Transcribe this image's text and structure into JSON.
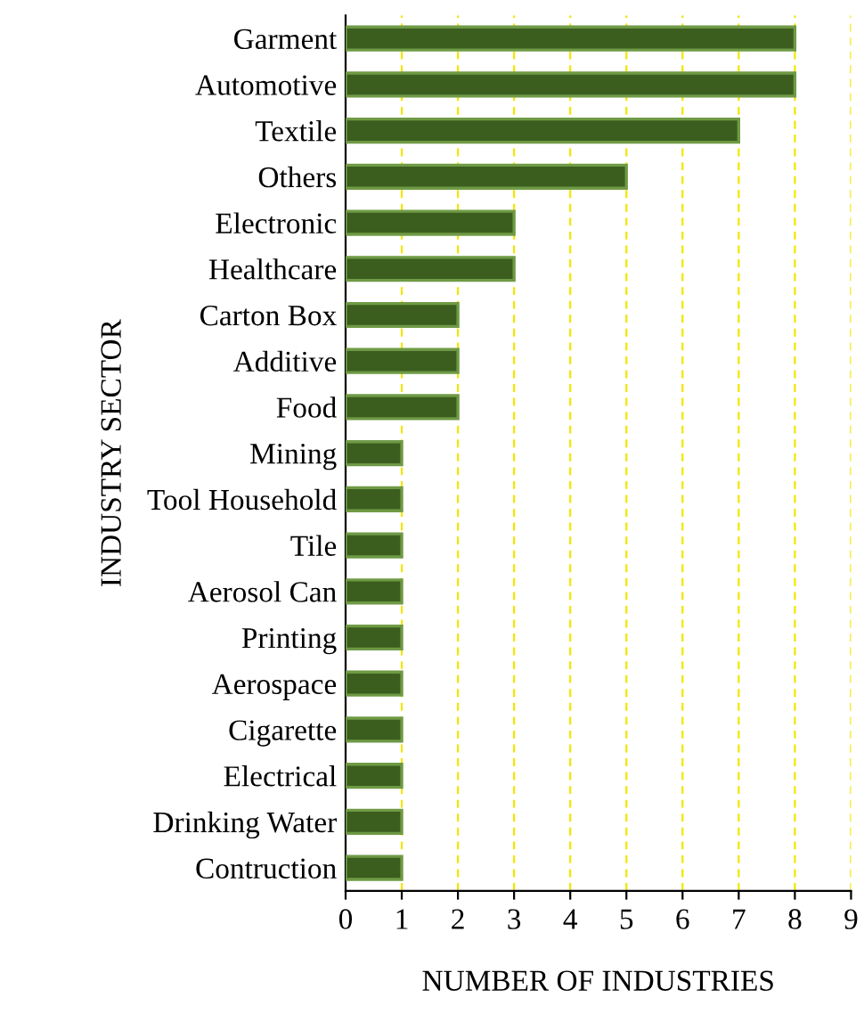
{
  "chart_data": {
    "type": "bar",
    "orientation": "horizontal",
    "xlabel": "NUMBER OF INDUSTRIES",
    "ylabel": "INDUSTRY SECTOR",
    "categories": [
      "Garment",
      "Automotive",
      "Textile",
      "Others",
      "Electronic",
      "Healthcare",
      "Carton Box",
      "Additive",
      "Food",
      "Mining",
      "Tool Household",
      "Tile",
      "Aerosol Can",
      "Printing",
      "Aerospace",
      "Cigarette",
      "Electrical",
      "Drinking Water",
      "Contruction"
    ],
    "values": [
      8,
      8,
      7,
      5,
      3,
      3,
      2,
      2,
      2,
      1,
      1,
      1,
      1,
      1,
      1,
      1,
      1,
      1,
      1
    ],
    "color": "#3b5e1f",
    "xlim": [
      0,
      9
    ],
    "xticks": [
      0,
      1,
      2,
      3,
      4,
      5,
      6,
      7,
      8,
      9
    ],
    "grid": "x"
  }
}
